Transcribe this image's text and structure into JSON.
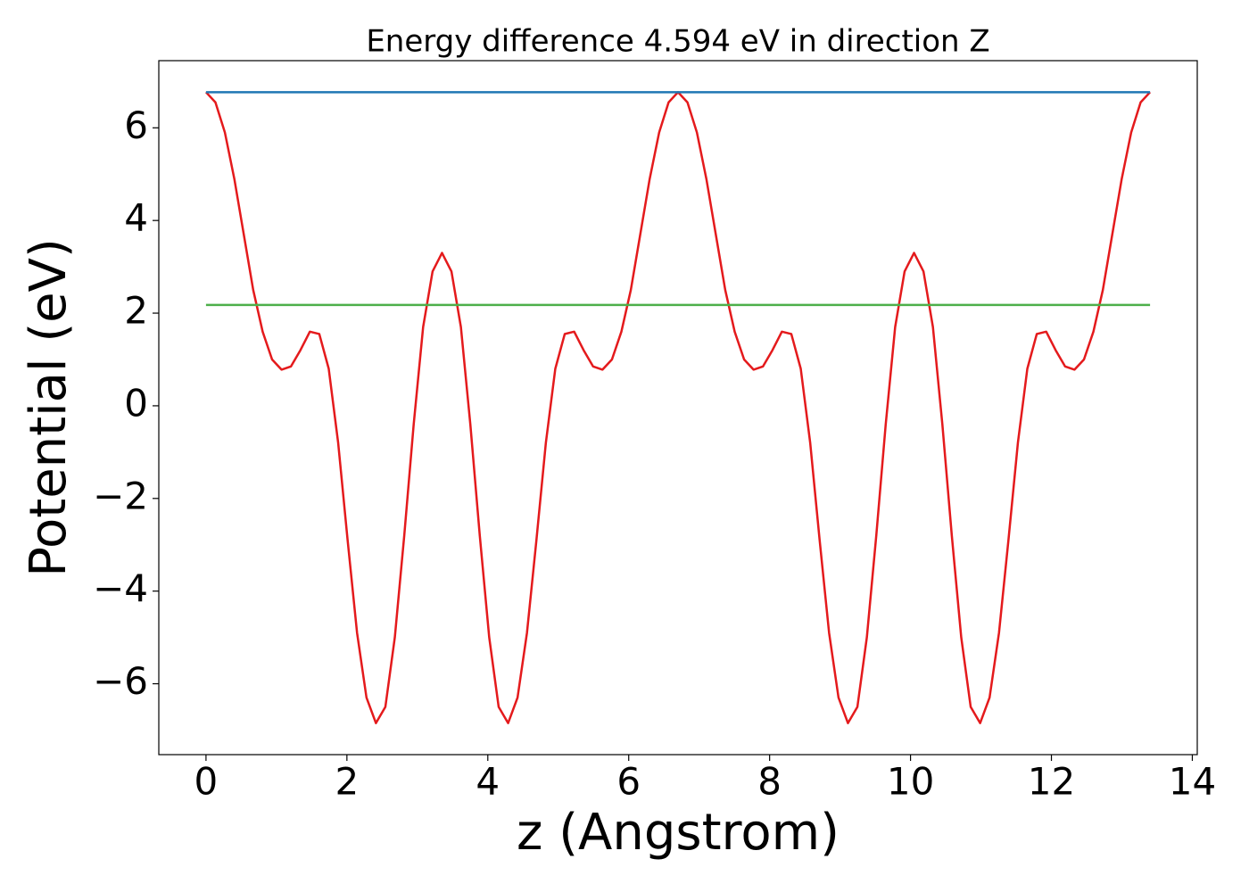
{
  "chart_data": {
    "type": "line",
    "title": "Energy difference 4.594 eV in direction Z",
    "xlabel": "z (Angstrom)",
    "ylabel": "Potential (eV)",
    "xlim": [
      -0.67,
      14.07
    ],
    "ylim": [
      -7.53,
      7.45
    ],
    "xticks": [
      0,
      2,
      4,
      6,
      8,
      10,
      12,
      14
    ],
    "yticks": [
      {
        "value": -6,
        "label": "−6"
      },
      {
        "value": -4,
        "label": "−4"
      },
      {
        "value": -2,
        "label": "−2"
      },
      0,
      2,
      4,
      6
    ],
    "grid": false,
    "series": [
      {
        "color": "#e41a1c",
        "x": [
          0,
          0.134,
          0.268,
          0.402,
          0.536,
          0.67,
          0.804,
          0.938,
          1.072,
          1.206,
          1.34,
          1.474,
          1.608,
          1.742,
          1.876,
          2.01,
          2.144,
          2.278,
          2.412,
          2.546,
          2.68,
          2.814,
          2.948,
          3.082,
          3.216,
          3.35,
          3.484,
          3.618,
          3.752,
          3.886,
          4.02,
          4.154,
          4.288,
          4.422,
          4.556,
          4.69,
          4.824,
          4.958,
          5.092,
          5.226,
          5.36,
          5.494,
          5.628,
          5.762,
          5.896,
          6.03,
          6.164,
          6.298,
          6.432,
          6.566,
          6.7,
          6.834,
          6.968,
          7.102,
          7.236,
          7.37,
          7.504,
          7.638,
          7.772,
          7.906,
          8.04,
          8.174,
          8.308,
          8.442,
          8.576,
          8.71,
          8.844,
          8.978,
          9.112,
          9.246,
          9.38,
          9.514,
          9.648,
          9.782,
          9.916,
          10.05,
          10.184,
          10.318,
          10.452,
          10.586,
          10.72,
          10.854,
          10.988,
          11.122,
          11.256,
          11.39,
          11.524,
          11.658,
          11.792,
          11.926,
          12.06,
          12.194,
          12.328,
          12.462,
          12.596,
          12.73,
          12.864,
          12.998,
          13.132,
          13.266,
          13.4
        ],
        "values": [
          6.77,
          6.55,
          5.9,
          4.9,
          3.7,
          2.5,
          1.6,
          1.0,
          0.78,
          0.85,
          1.2,
          1.6,
          1.55,
          0.8,
          -0.8,
          -2.9,
          -4.9,
          -6.3,
          -6.85,
          -6.5,
          -5.0,
          -2.8,
          -0.4,
          1.7,
          2.9,
          3.3,
          2.9,
          1.7,
          -0.4,
          -2.8,
          -5.0,
          -6.5,
          -6.85,
          -6.3,
          -4.9,
          -2.9,
          -0.8,
          0.8,
          1.55,
          1.6,
          1.2,
          0.85,
          0.78,
          1.0,
          1.6,
          2.5,
          3.7,
          4.9,
          5.9,
          6.55,
          6.77,
          6.55,
          5.9,
          4.9,
          3.7,
          2.5,
          1.6,
          1.0,
          0.78,
          0.85,
          1.2,
          1.6,
          1.55,
          0.8,
          -0.8,
          -2.9,
          -4.9,
          -6.3,
          -6.85,
          -6.5,
          -5.0,
          -2.8,
          -0.4,
          1.7,
          2.9,
          3.3,
          2.9,
          1.7,
          -0.4,
          -2.8,
          -5.0,
          -6.5,
          -6.85,
          -6.3,
          -4.9,
          -2.9,
          -0.8,
          0.8,
          1.55,
          1.6,
          1.2,
          0.85,
          0.78,
          1.0,
          1.6,
          2.5,
          3.7,
          4.9,
          5.9,
          6.55,
          6.77
        ]
      },
      {
        "color": "#1f77b4",
        "x": [
          0,
          13.4
        ],
        "values": [
          6.77,
          6.77
        ]
      },
      {
        "color": "#4daf4a",
        "x": [
          0,
          13.4
        ],
        "values": [
          2.176,
          2.176
        ]
      }
    ]
  }
}
